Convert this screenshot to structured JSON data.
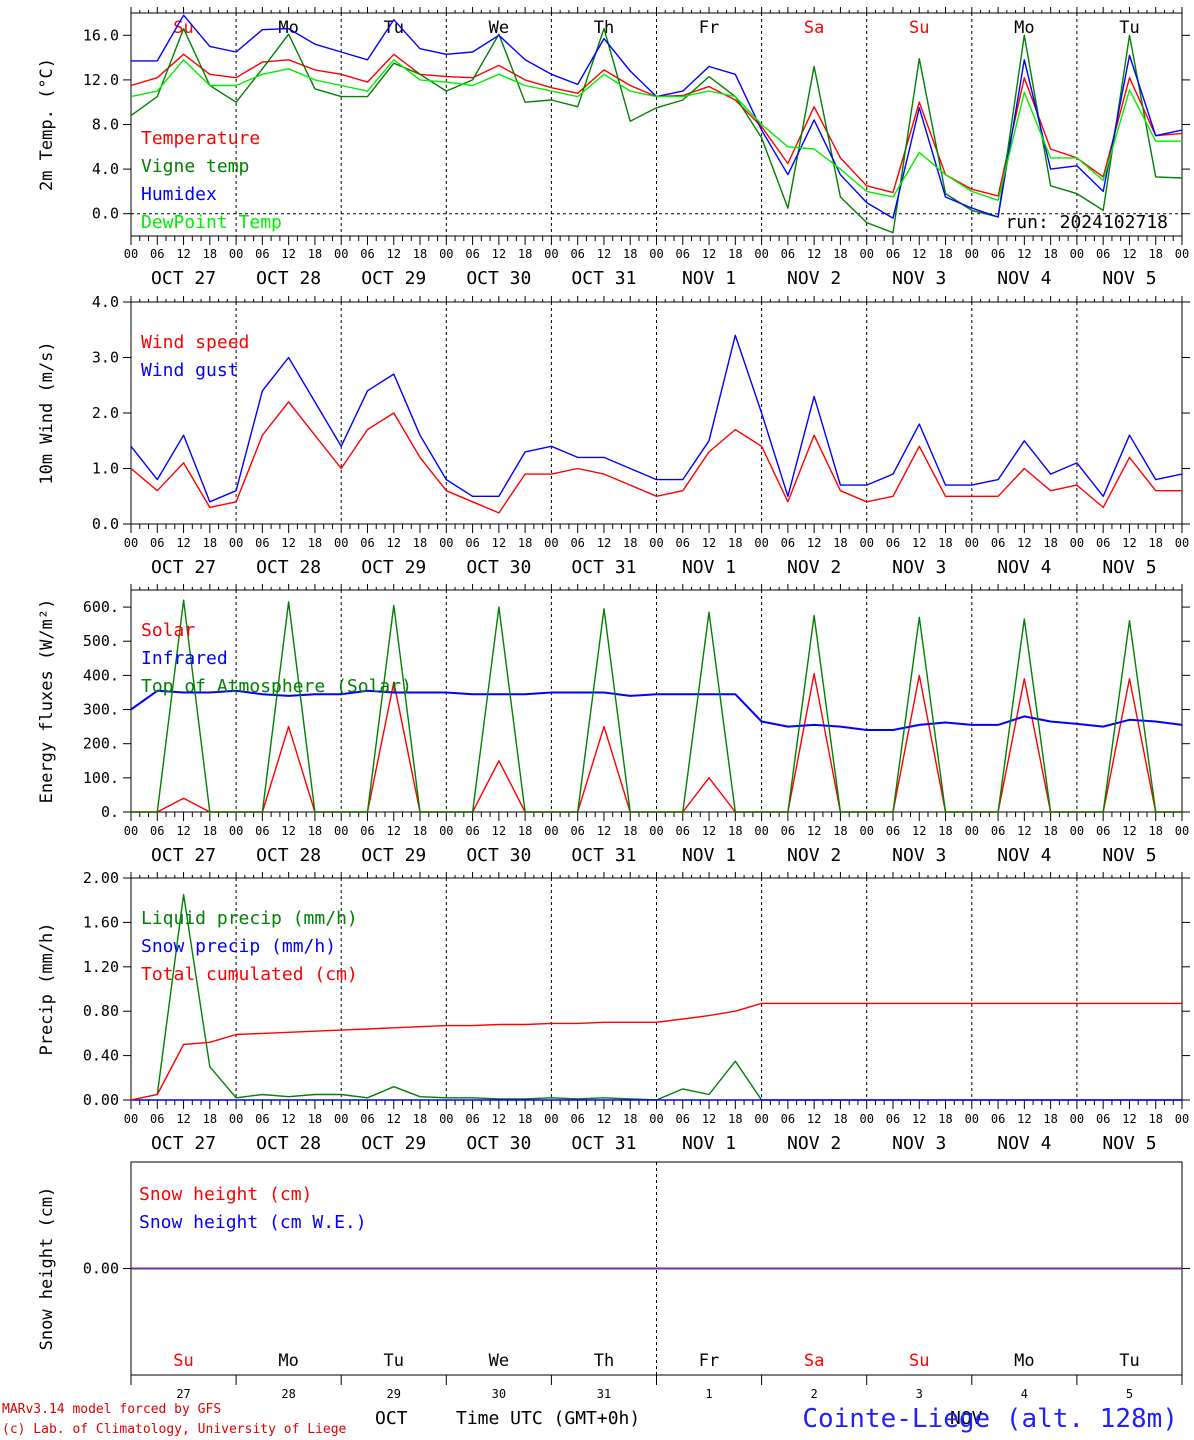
{
  "chart_data": [
    {
      "type": "line",
      "ylabel": "2m Temp. (°C)",
      "ylim": [
        -2.0,
        18.0
      ],
      "yticks": [
        "0.0",
        "4.0",
        "8.0",
        "12.0",
        "16.0"
      ],
      "ytick_values": [
        0,
        4,
        8,
        12,
        16
      ],
      "annotation": "run: 2024102718",
      "x_hours": [
        0,
        6,
        12,
        18,
        24,
        30,
        36,
        42,
        48,
        54,
        60,
        66,
        72,
        78,
        84,
        90,
        96,
        102,
        108,
        114,
        120,
        126,
        132,
        138,
        144,
        150,
        156,
        162,
        168,
        174,
        180,
        186,
        192,
        198,
        204,
        210,
        216,
        222,
        228,
        234,
        240
      ],
      "series": [
        {
          "name": "Temperature",
          "color": "#ff0000",
          "values": [
            11.5,
            12.2,
            14.3,
            12.5,
            12.2,
            13.6,
            13.8,
            12.9,
            12.5,
            11.8,
            14.3,
            12.5,
            12.3,
            12.2,
            13.3,
            12.0,
            11.3,
            10.8,
            12.9,
            11.5,
            10.5,
            10.6,
            11.4,
            10.2,
            7.8,
            4.5,
            9.6,
            5.0,
            2.5,
            1.9,
            10.0,
            3.5,
            2.2,
            1.6,
            12.2,
            5.8,
            5.0,
            3.3,
            12.2,
            7.0,
            7.2
          ]
        },
        {
          "name": "Vigne temp",
          "color": "#008000",
          "values": [
            8.8,
            10.5,
            16.6,
            11.5,
            10.0,
            13.0,
            16.1,
            11.2,
            10.5,
            10.5,
            13.5,
            12.5,
            11.0,
            12.0,
            16.1,
            10.0,
            10.2,
            9.6,
            16.6,
            8.3,
            9.5,
            10.2,
            12.3,
            10.5,
            6.8,
            0.5,
            13.2,
            1.5,
            -0.8,
            -1.7,
            13.9,
            1.8,
            0.3,
            -0.3,
            16.0,
            2.5,
            1.8,
            0.3,
            16.0,
            3.3,
            3.2
          ]
        },
        {
          "name": "Humidex",
          "color": "#0000ff",
          "values": [
            13.7,
            13.7,
            17.8,
            15.0,
            14.5,
            16.5,
            16.6,
            15.2,
            14.5,
            13.8,
            17.4,
            14.8,
            14.3,
            14.5,
            16.0,
            13.8,
            12.5,
            11.6,
            15.7,
            12.8,
            10.5,
            11.0,
            13.2,
            12.5,
            7.5,
            3.5,
            8.4,
            3.5,
            1.0,
            -0.4,
            9.5,
            1.5,
            0.5,
            -0.3,
            13.8,
            4.0,
            4.3,
            2.0,
            14.2,
            7.0,
            7.5
          ]
        },
        {
          "name": "DewPoint Temp",
          "color": "#00ee00",
          "values": [
            10.5,
            11.0,
            13.8,
            11.5,
            11.5,
            12.5,
            13.0,
            12.0,
            11.5,
            11.0,
            13.8,
            12.0,
            11.8,
            11.5,
            12.5,
            11.5,
            11.0,
            10.5,
            12.5,
            11.0,
            10.5,
            10.5,
            11.0,
            10.5,
            8.0,
            6.0,
            5.8,
            4.0,
            2.0,
            1.5,
            5.5,
            3.5,
            2.0,
            1.2,
            10.9,
            5.0,
            5.0,
            3.0,
            11.1,
            6.5,
            6.5
          ]
        }
      ]
    },
    {
      "type": "line",
      "ylabel": "10m Wind (m/s)",
      "ylim": [
        0.0,
        4.0
      ],
      "yticks": [
        "0.0",
        "1.0",
        "2.0",
        "3.0",
        "4.0"
      ],
      "ytick_values": [
        0,
        1,
        2,
        3,
        4
      ],
      "x_hours": [
        0,
        6,
        12,
        18,
        24,
        30,
        36,
        42,
        48,
        54,
        60,
        66,
        72,
        78,
        84,
        90,
        96,
        102,
        108,
        114,
        120,
        126,
        132,
        138,
        144,
        150,
        156,
        162,
        168,
        174,
        180,
        186,
        192,
        198,
        204,
        210,
        216,
        222,
        228,
        234,
        240
      ],
      "series": [
        {
          "name": "Wind speed",
          "color": "#ff0000",
          "values": [
            1.0,
            0.6,
            1.1,
            0.3,
            0.4,
            1.6,
            2.2,
            1.6,
            1.0,
            1.7,
            2.0,
            1.2,
            0.6,
            0.4,
            0.2,
            0.9,
            0.9,
            1.0,
            0.9,
            0.7,
            0.5,
            0.6,
            1.3,
            1.7,
            1.4,
            0.4,
            1.6,
            0.6,
            0.4,
            0.5,
            1.4,
            0.5,
            0.5,
            0.5,
            1.0,
            0.6,
            0.7,
            0.3,
            1.2,
            0.6,
            0.6
          ]
        },
        {
          "name": "Wind gust",
          "color": "#0000ff",
          "values": [
            1.4,
            0.8,
            1.6,
            0.4,
            0.6,
            2.4,
            3.0,
            2.2,
            1.4,
            2.4,
            2.7,
            1.6,
            0.8,
            0.5,
            0.5,
            1.3,
            1.4,
            1.2,
            1.2,
            1.0,
            0.8,
            0.8,
            1.5,
            3.4,
            2.0,
            0.5,
            2.3,
            0.7,
            0.7,
            0.9,
            1.8,
            0.7,
            0.7,
            0.8,
            1.5,
            0.9,
            1.1,
            0.5,
            1.6,
            0.8,
            0.9
          ]
        }
      ]
    },
    {
      "type": "line",
      "ylabel": "Energy fluxes (W/m²)",
      "ylim": [
        0,
        650
      ],
      "yticks": [
        "0.",
        "100.",
        "200.",
        "300.",
        "400.",
        "500.",
        "600."
      ],
      "ytick_values": [
        0,
        100,
        200,
        300,
        400,
        500,
        600
      ],
      "x_hours": [
        0,
        6,
        12,
        18,
        24,
        30,
        36,
        42,
        48,
        54,
        60,
        66,
        72,
        78,
        84,
        90,
        96,
        102,
        108,
        114,
        120,
        126,
        132,
        138,
        144,
        150,
        156,
        162,
        168,
        174,
        180,
        186,
        192,
        198,
        204,
        210,
        216,
        222,
        228,
        234,
        240
      ],
      "series": [
        {
          "name": "Solar",
          "color": "#ff0000",
          "values": [
            0,
            0,
            40,
            0,
            0,
            0,
            250,
            0,
            0,
            0,
            380,
            0,
            0,
            0,
            150,
            0,
            0,
            0,
            250,
            0,
            0,
            0,
            100,
            0,
            0,
            0,
            405,
            0,
            0,
            0,
            400,
            0,
            0,
            0,
            390,
            0,
            0,
            0,
            390,
            0,
            0
          ]
        },
        {
          "name": "Infrared",
          "color": "#0000ff",
          "values": [
            300,
            355,
            350,
            350,
            355,
            345,
            340,
            345,
            345,
            355,
            350,
            350,
            350,
            345,
            345,
            345,
            350,
            350,
            350,
            340,
            345,
            345,
            345,
            345,
            265,
            250,
            255,
            250,
            240,
            240,
            255,
            262,
            255,
            255,
            280,
            265,
            258,
            250,
            270,
            265,
            255
          ]
        },
        {
          "name": "Top of Atmosphere (Solar)",
          "color": "#008000",
          "values": [
            0,
            0,
            620,
            0,
            0,
            0,
            615,
            0,
            0,
            0,
            605,
            0,
            0,
            0,
            600,
            0,
            0,
            0,
            595,
            0,
            0,
            0,
            585,
            0,
            0,
            0,
            575,
            0,
            0,
            0,
            570,
            0,
            0,
            0,
            565,
            0,
            0,
            0,
            560,
            0,
            0
          ]
        }
      ]
    },
    {
      "type": "line",
      "ylabel": "Precip (mm/h)",
      "ylim": [
        0.0,
        2.0
      ],
      "yticks": [
        "0.00",
        "0.40",
        "0.80",
        "1.20",
        "1.60",
        "2.00"
      ],
      "ytick_values": [
        0,
        0.4,
        0.8,
        1.2,
        1.6,
        2.0
      ],
      "x_hours": [
        0,
        6,
        12,
        18,
        24,
        30,
        36,
        42,
        48,
        54,
        60,
        66,
        72,
        78,
        84,
        90,
        96,
        102,
        108,
        114,
        120,
        126,
        132,
        138,
        144,
        150,
        156,
        162,
        168,
        174,
        180,
        186,
        192,
        198,
        204,
        210,
        216,
        222,
        228,
        234,
        240
      ],
      "series": [
        {
          "name": "Liquid precip (mm/h)",
          "color": "#008000",
          "values": [
            0,
            0.05,
            1.85,
            0.3,
            0.02,
            0.05,
            0.03,
            0.05,
            0.05,
            0.02,
            0.12,
            0.03,
            0.02,
            0.02,
            0.01,
            0.01,
            0.02,
            0.01,
            0.02,
            0.01,
            0,
            0.1,
            0.05,
            0.35,
            0,
            0,
            0,
            0,
            0,
            0,
            0,
            0,
            0,
            0,
            0,
            0,
            0,
            0,
            0,
            0,
            0
          ]
        },
        {
          "name": "Snow precip (mm/h)",
          "color": "#0000ff",
          "values": [
            0,
            0,
            0,
            0,
            0,
            0,
            0,
            0,
            0,
            0,
            0,
            0,
            0,
            0,
            0,
            0,
            0,
            0,
            0,
            0,
            0,
            0,
            0,
            0,
            0,
            0,
            0,
            0,
            0,
            0,
            0,
            0,
            0,
            0,
            0,
            0,
            0,
            0,
            0,
            0,
            0
          ]
        },
        {
          "name": "Total cumulated (cm)",
          "color": "#ff0000",
          "values": [
            0,
            0.05,
            0.5,
            0.52,
            0.59,
            0.6,
            0.61,
            0.62,
            0.63,
            0.64,
            0.65,
            0.66,
            0.67,
            0.67,
            0.68,
            0.68,
            0.69,
            0.69,
            0.7,
            0.7,
            0.7,
            0.73,
            0.76,
            0.8,
            0.87,
            0.87,
            0.87,
            0.87,
            0.87,
            0.87,
            0.87,
            0.87,
            0.87,
            0.87,
            0.87,
            0.87,
            0.87,
            0.87,
            0.87,
            0.87,
            0.87
          ]
        }
      ]
    },
    {
      "type": "line",
      "ylabel": "Snow height (cm)",
      "ylim": [
        -1.0,
        1.0
      ],
      "yticks": [
        "0.00"
      ],
      "ytick_values": [
        0
      ],
      "x_hours": [
        0,
        240
      ],
      "series": [
        {
          "name": "Snow height (cm)",
          "color": "#ff0000",
          "values": [
            0,
            0
          ]
        },
        {
          "name": "Snow height (cm W.E.)",
          "color": "#0000ff",
          "values": [
            0,
            0
          ]
        }
      ]
    }
  ],
  "x_axis": {
    "hour_labels": [
      "00",
      "06",
      "12",
      "18"
    ],
    "dates": [
      "OCT 27",
      "OCT 28",
      "OCT 29",
      "OCT 30",
      "OCT 31",
      "NOV  1",
      "NOV  2",
      "NOV  3",
      "NOV  4",
      "NOV  5"
    ],
    "day_abbrev": [
      "Su",
      "Mo",
      "Tu",
      "We",
      "Th",
      "Fr",
      "Sa",
      "Su",
      "Mo",
      "Tu"
    ],
    "day_colors": [
      "#ff0000",
      "#000000",
      "#000000",
      "#000000",
      "#000000",
      "#000000",
      "#ff0000",
      "#ff0000",
      "#000000",
      "#000000"
    ],
    "day_numbers": [
      "27",
      "28",
      "29",
      "30",
      "31",
      "1",
      "2",
      "3",
      "4",
      "5"
    ],
    "month_labels": [
      "OCT",
      "NOV"
    ]
  },
  "footer": {
    "model_line": "MARv3.14 model forced by GFS",
    "copyright_line": "(c) Lab. of Climatology, University of Liege",
    "time_label": "Time UTC (GMT+0h)",
    "station": "Cointe-Liege (alt. 128m)"
  }
}
